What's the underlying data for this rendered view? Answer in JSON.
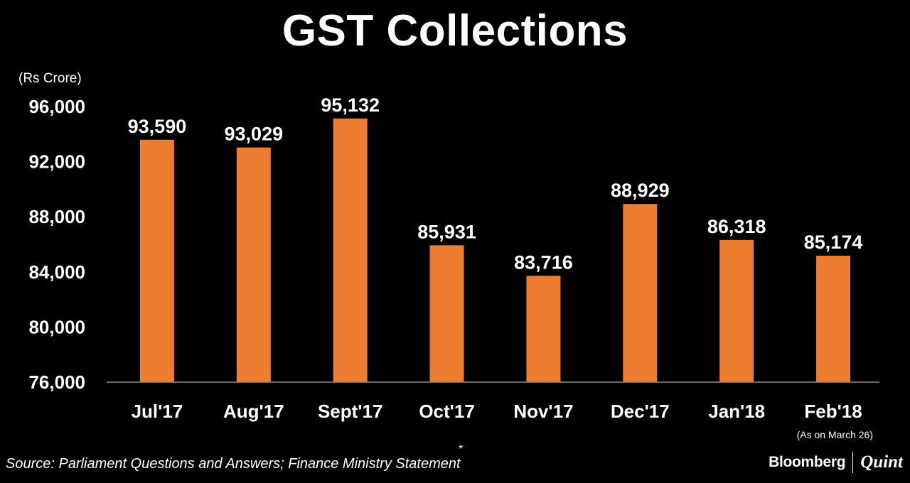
{
  "chart_data": {
    "type": "bar",
    "title": "GST Collections",
    "unit_label": "(Rs Crore)",
    "categories": [
      "Jul'17",
      "Aug'17",
      "Sept'17",
      "Oct'17",
      "Nov'17",
      "Dec'17",
      "Jan'18",
      "Feb'18"
    ],
    "values": [
      93590,
      93029,
      95132,
      85931,
      83716,
      88929,
      86318,
      85174
    ],
    "value_labels": [
      "93,590",
      "93,029",
      "95,132",
      "85,931",
      "83,716",
      "88,929",
      "86,318",
      "85,174"
    ],
    "y_ticks": [
      "76,000",
      "80,000",
      "84,000",
      "88,000",
      "92,000",
      "96,000"
    ],
    "y_tick_values": [
      76000,
      80000,
      84000,
      88000,
      92000,
      96000
    ],
    "ylim": [
      76000,
      96000
    ],
    "grid": false,
    "bar_color": "#ED7D31",
    "annotation": "(As on March 26)"
  },
  "source": "Source: Parliament Questions and Answers; Finance Ministry Statement",
  "asterisk": "*",
  "logo": {
    "primary": "Bloomberg",
    "secondary": "Quint"
  }
}
